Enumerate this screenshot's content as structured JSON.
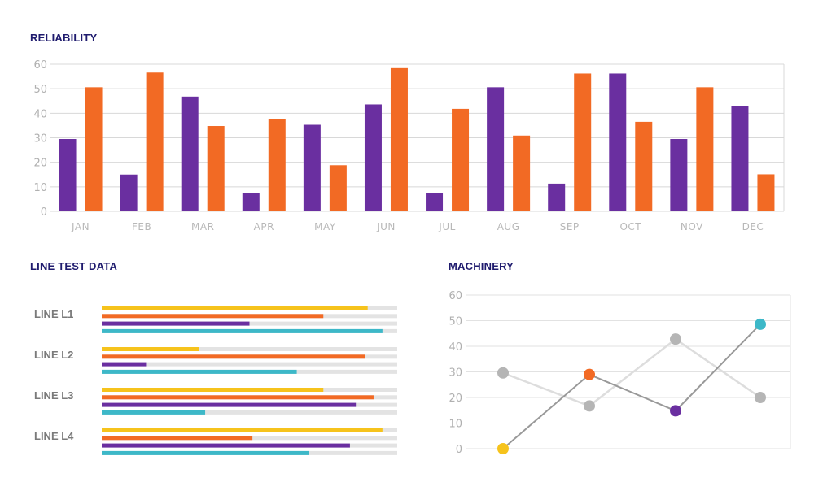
{
  "sections": {
    "reliability_title": "RELIABILITY",
    "line_test_title": "LINE TEST DATA",
    "machinery_title": "MACHINERY"
  },
  "colors": {
    "purple": "#6a2fa0",
    "orange": "#f26a24",
    "yellow": "#f6c31c",
    "teal": "#3db8c8",
    "gray_dot": "#b5b5b5",
    "track": "#e3e3e3",
    "title": "#1f1b6e"
  },
  "chart_data": [
    {
      "type": "bar",
      "title": "RELIABILITY",
      "categories": [
        "JAN",
        "FEB",
        "MAR",
        "APR",
        "MAY",
        "JUN",
        "JUL",
        "AUG",
        "SEP",
        "OCT",
        "NOV",
        "DEC"
      ],
      "series": [
        {
          "color": "#6a2fa0",
          "values": [
            29.5,
            15,
            46.8,
            7.5,
            35.3,
            43.6,
            7.5,
            50.6,
            11.3,
            56.2,
            29.5,
            42.9
          ]
        },
        {
          "color": "#f26a24",
          "values": [
            50.6,
            56.6,
            34.8,
            37.6,
            18.8,
            58.4,
            41.8,
            30.9,
            56.2,
            36.5,
            50.6,
            15.1
          ]
        }
      ],
      "yticks": [
        0,
        10,
        20,
        30,
        40,
        50,
        60
      ],
      "ylim": [
        0,
        60
      ],
      "grid": true
    },
    {
      "type": "bar",
      "title": "LINE TEST DATA",
      "orientation": "horizontal",
      "categories": [
        "LINE L1",
        "LINE L2",
        "LINE L3",
        "LINE L4"
      ],
      "series": [
        {
          "color": "#f6c31c",
          "values": [
            0.9,
            0.33,
            0.75,
            0.95
          ]
        },
        {
          "color": "#f26a24",
          "values": [
            0.75,
            0.89,
            0.92,
            0.51
          ]
        },
        {
          "color": "#6a2fa0",
          "values": [
            0.5,
            0.15,
            0.86,
            0.84
          ]
        },
        {
          "color": "#3db8c8",
          "values": [
            0.95,
            0.66,
            0.35,
            0.7
          ]
        }
      ],
      "xlim": [
        0,
        1
      ]
    },
    {
      "type": "line",
      "title": "MACHINERY",
      "x": [
        1,
        2,
        3,
        4
      ],
      "series": [
        {
          "color": "#999999",
          "dot_colors": [
            "#f6c31c",
            "#f26a24",
            "#6a2fa0",
            "#3db8c8"
          ],
          "values": [
            0,
            29,
            14.8,
            48.6
          ]
        },
        {
          "color": "#dddddd",
          "dot_colors": [
            "#b5b5b5",
            "#b5b5b5",
            "#b5b5b5",
            "#b5b5b5"
          ],
          "values": [
            29.6,
            16.7,
            42.8,
            20
          ]
        }
      ],
      "yticks": [
        0,
        10,
        20,
        30,
        40,
        50,
        60
      ],
      "ylim": [
        0,
        60
      ],
      "grid": true
    }
  ]
}
